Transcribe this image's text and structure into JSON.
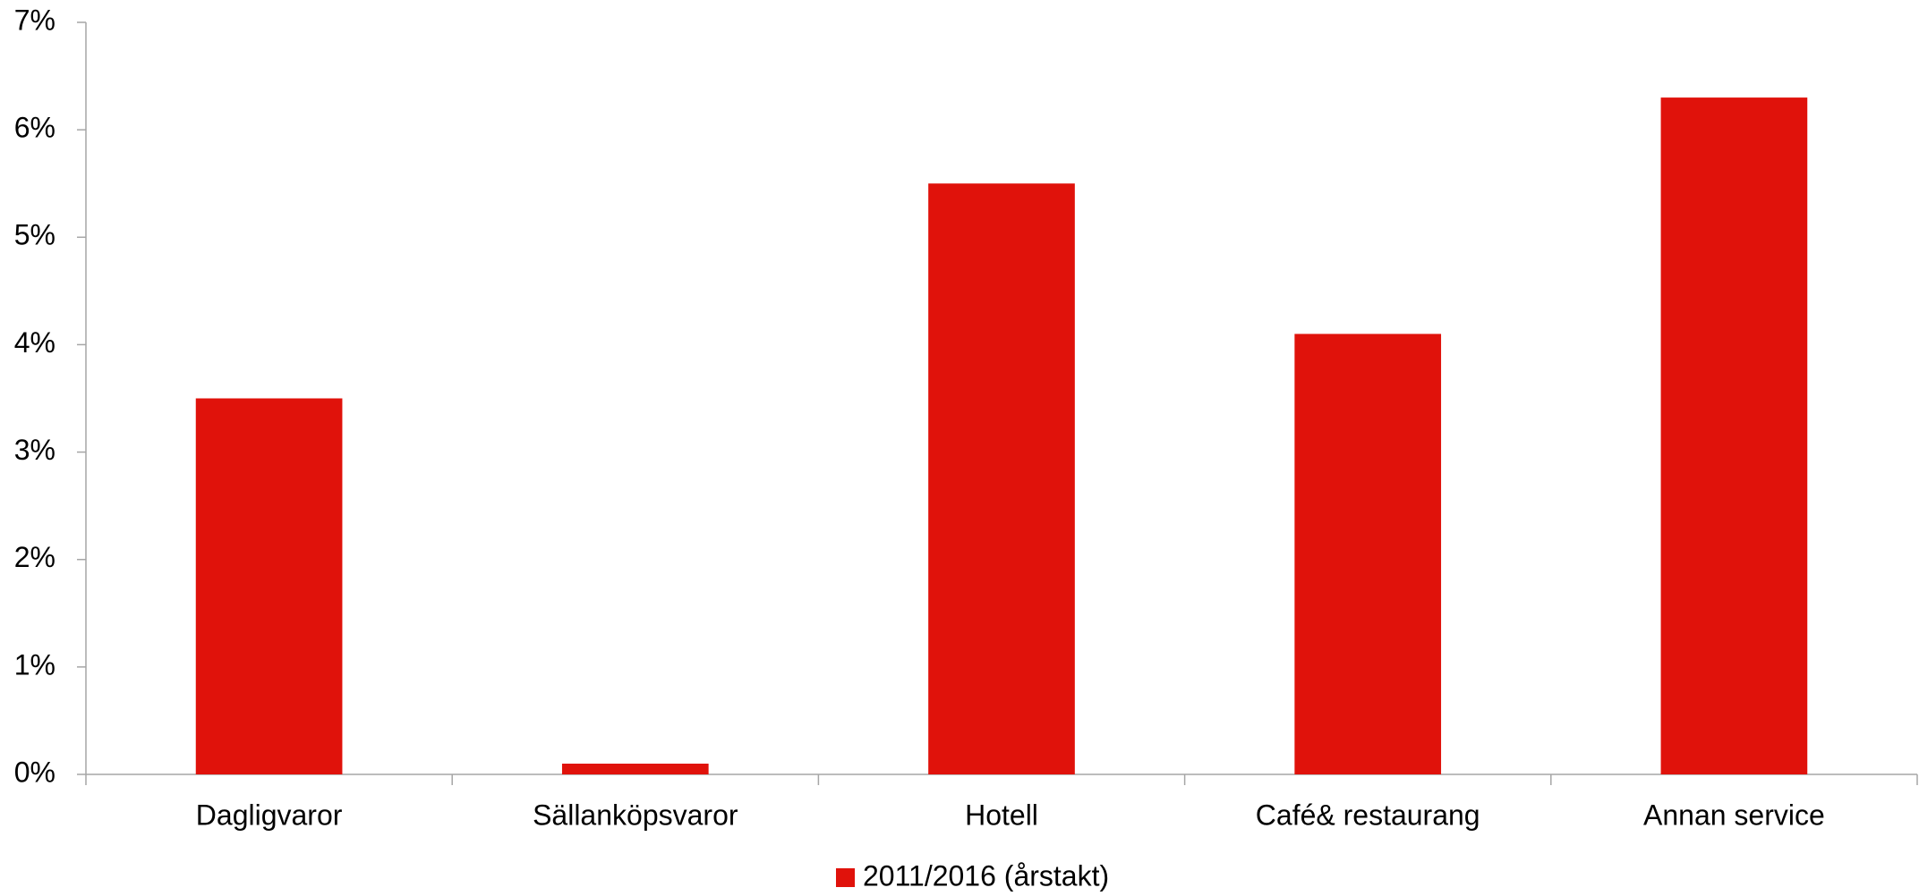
{
  "chart_data": {
    "type": "bar",
    "categories": [
      "Dagligvaror",
      "Sällanköpsvaror",
      "Hotell",
      "Café& restaurang",
      "Annan service"
    ],
    "series": [
      {
        "name": "2011/2016 (årstakt)",
        "color": "#e0120b",
        "values": [
          3.5,
          0.1,
          5.5,
          4.1,
          6.3
        ]
      }
    ],
    "ylim": [
      0,
      7
    ],
    "yticks": [
      {
        "value": 0,
        "label": "0%"
      },
      {
        "value": 1,
        "label": "1%"
      },
      {
        "value": 2,
        "label": "2%"
      },
      {
        "value": 3,
        "label": "3%"
      },
      {
        "value": 4,
        "label": "4%"
      },
      {
        "value": 5,
        "label": "5%"
      },
      {
        "value": 6,
        "label": "6%"
      },
      {
        "value": 7,
        "label": "7%"
      }
    ],
    "grid": false,
    "legend": "bottom"
  }
}
